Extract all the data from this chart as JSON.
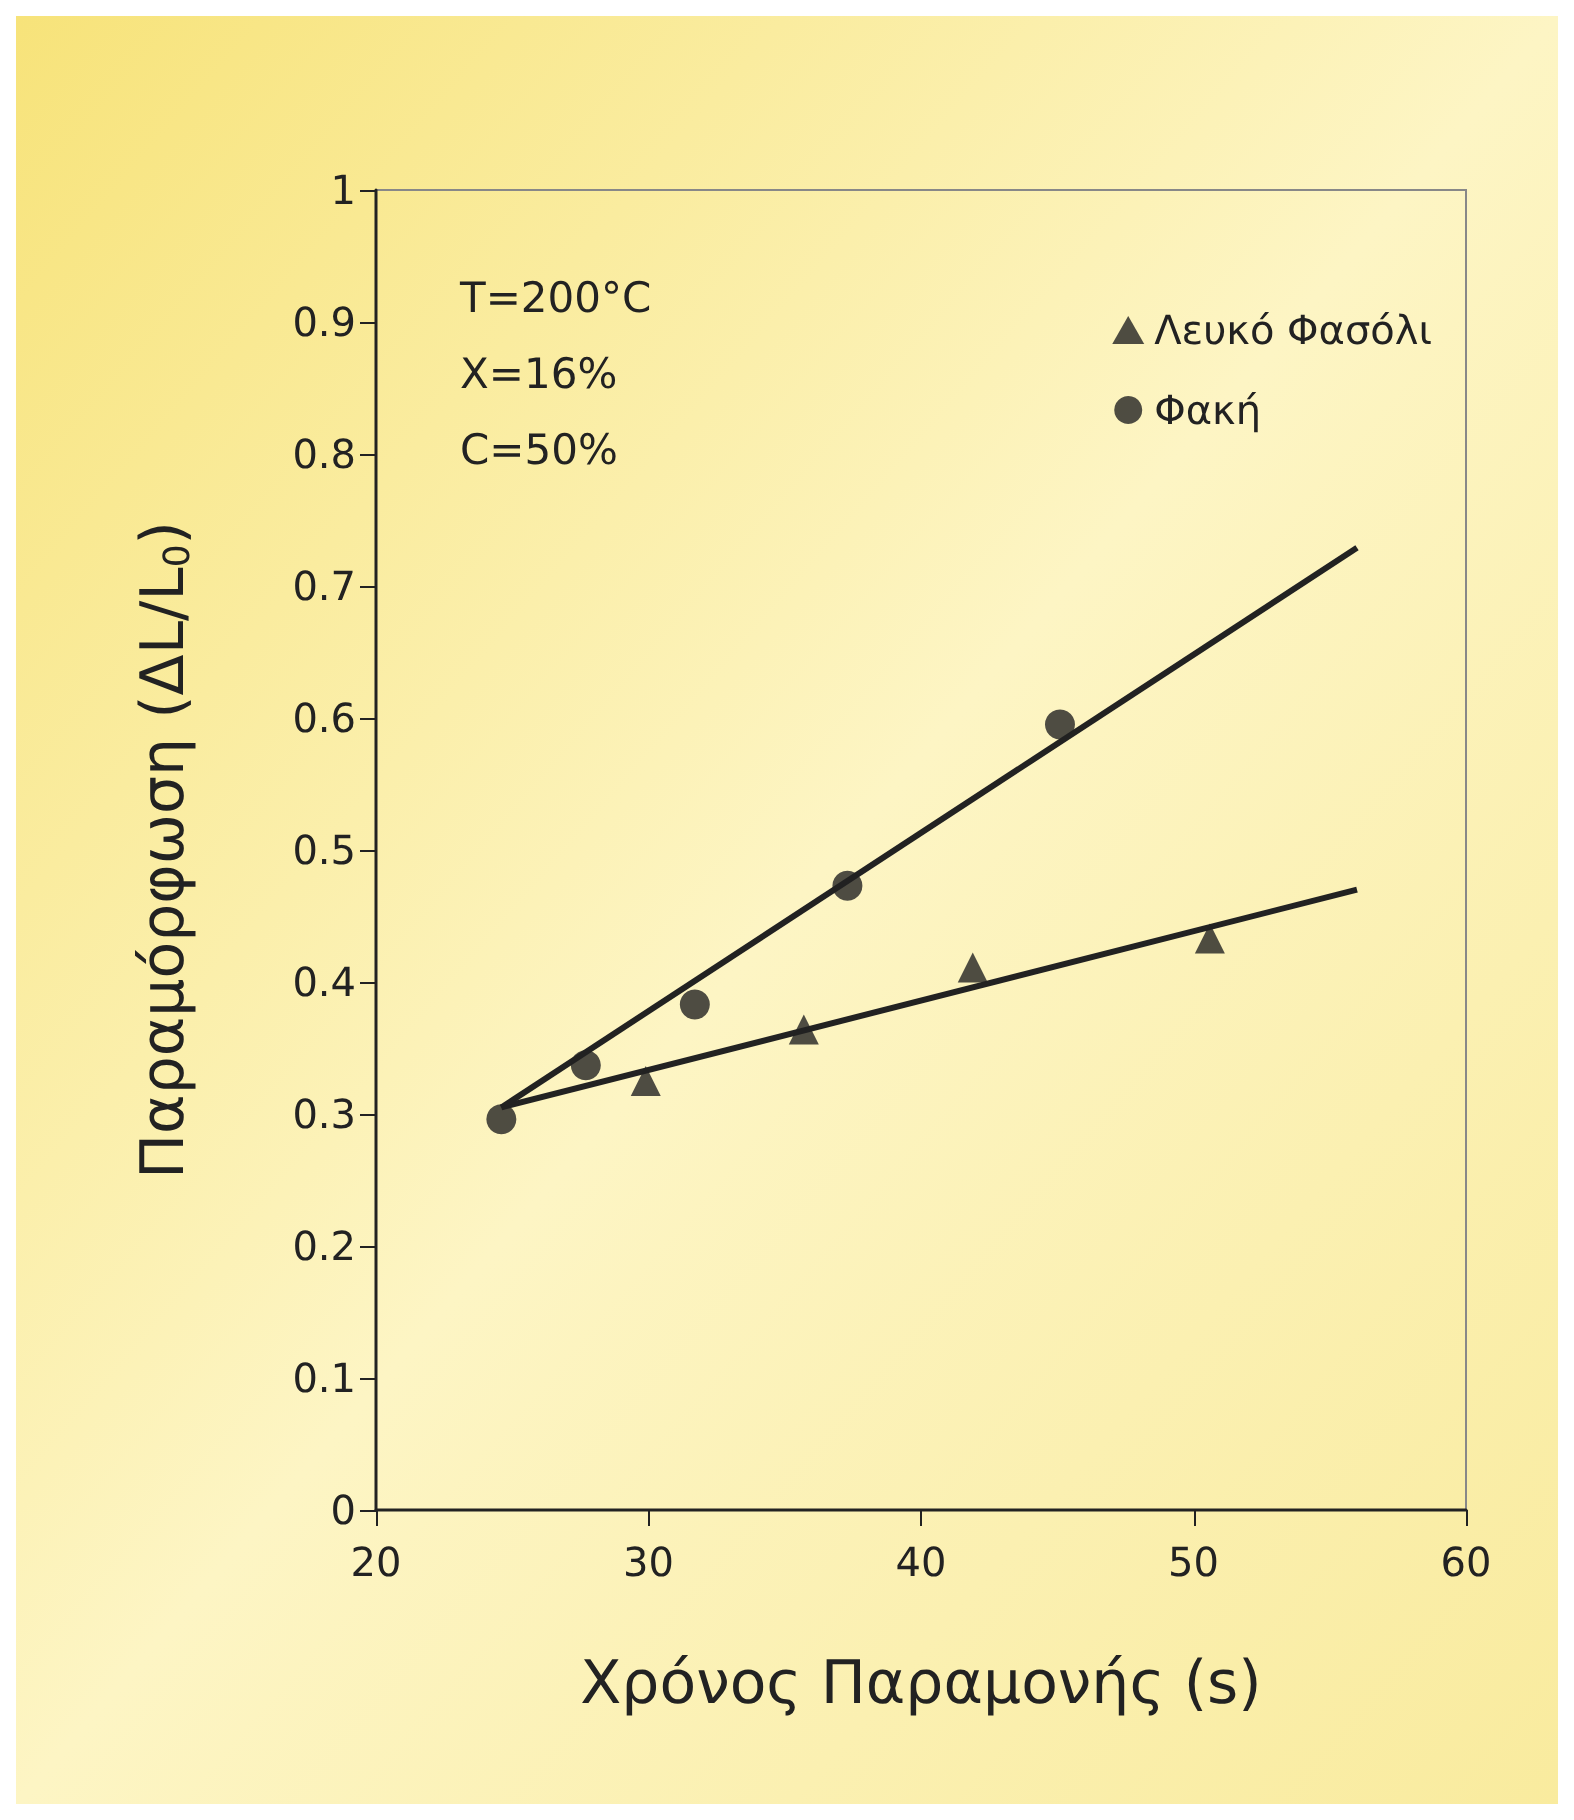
{
  "chart_data": {
    "type": "scatter",
    "xlabel": "Χρόνος Παραμονής (s)",
    "ylabel": "Παραμόρφωση (ΔL/L$_{0}$)",
    "xlim": [
      20,
      60
    ],
    "xticks": [
      20,
      30,
      40,
      50,
      60
    ],
    "ylim": [
      0,
      1
    ],
    "yticks": [
      0,
      0.1,
      0.2,
      0.3,
      0.4,
      0.5,
      0.6,
      0.7,
      0.8,
      0.9,
      1
    ],
    "grid": false,
    "legend": "top right",
    "annotations": [
      "T=200°C\nX=16%\nC=50%"
    ],
    "series": [
      {
        "name": "Λευκό Φασόλι",
        "marker": "triangle",
        "color": "#222222",
        "x": [
          29.9,
          35.7,
          41.9,
          50.6
        ],
        "values": [
          0.325,
          0.364,
          0.411,
          0.433
        ]
      },
      {
        "name": "Φακή",
        "marker": "circle",
        "color": "#222222",
        "x": [
          24.6,
          27.7,
          31.7,
          37.3,
          45.1
        ],
        "values": [
          0.296,
          0.337,
          0.383,
          0.473,
          0.595
        ]
      },
      {
        "type": "line",
        "marker": "none",
        "line_style": "solid",
        "color": "#222222",
        "x": [
          24.6,
          56
        ],
        "values": [
          0.305,
          0.47
        ]
      },
      {
        "type": "line",
        "marker": "none",
        "line_style": "solid",
        "color": "#222222",
        "x": [
          24.6,
          56
        ],
        "values": [
          0.305,
          0.729
        ]
      }
    ]
  }
}
